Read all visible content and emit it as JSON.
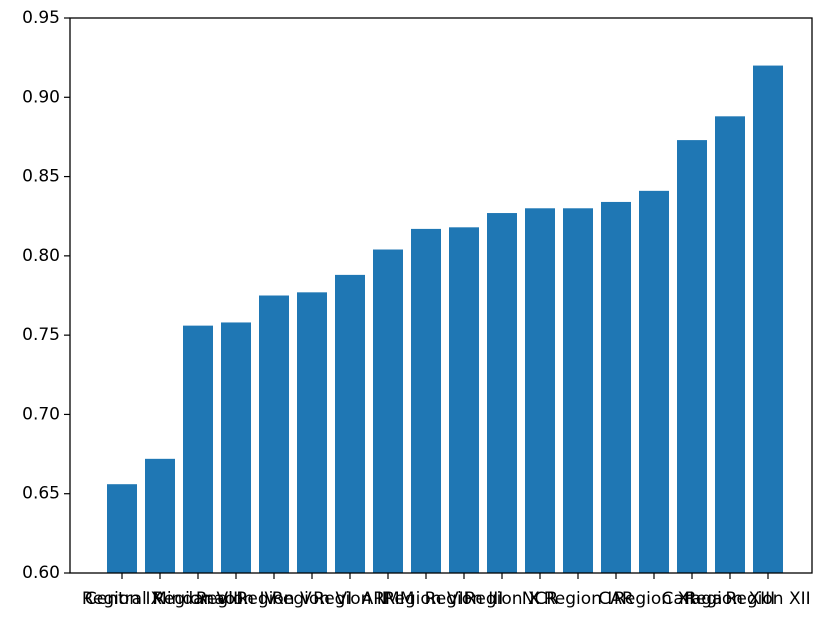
{
  "chart_data": {
    "type": "bar",
    "categories": [
      "Region IX",
      "Central Mindanao",
      "Region VIII",
      "Region IV",
      "Region V",
      "Region VI",
      "Region II",
      "ARMM",
      "Region VII",
      "Region III",
      "Region X",
      "NCR",
      "Region I",
      "CAR",
      "Region XI",
      "Caraga",
      "Region XIII",
      "Region XII"
    ],
    "values": [
      0.656,
      0.672,
      0.756,
      0.758,
      0.775,
      0.777,
      0.788,
      0.804,
      0.817,
      0.818,
      0.827,
      0.83,
      0.83,
      0.834,
      0.841,
      0.873,
      0.888,
      0.92
    ],
    "color": "#1f77b4",
    "ylim": [
      0.6,
      0.95
    ],
    "yticks": [
      {
        "value": 0.6,
        "label": "0.60"
      },
      {
        "value": 0.65,
        "label": "0.65"
      },
      {
        "value": 0.7,
        "label": "0.70"
      },
      {
        "value": 0.75,
        "label": "0.75"
      },
      {
        "value": 0.8,
        "label": "0.80"
      },
      {
        "value": 0.85,
        "label": "0.85"
      },
      {
        "value": 0.9,
        "label": "0.90"
      },
      {
        "value": 0.95,
        "label": "0.95"
      }
    ]
  }
}
